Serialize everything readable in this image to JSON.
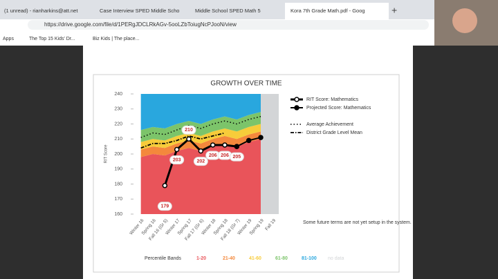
{
  "browser": {
    "tabs": [
      "(1 unread) - rianharkins@att.net",
      "Case Interview SPED Middle Scho",
      "Middle School SPED Math 5",
      "Kora 7th Grade Math.pdf - Goog"
    ],
    "url": "https://drive.google.com/file/d/1PERgJDCLRkAGv-5ooLZbToiugNcPJooN/view",
    "bookmarks": [
      "Apps",
      "The Top 15 Kids' Dr...",
      "Biz Kids | The place..."
    ]
  },
  "chart_data": {
    "type": "line",
    "title": "GROWTH OVER TIME",
    "ylabel": "RIT Score",
    "categories": [
      "Winter 16",
      "Spring 16",
      "Fall 16 (Gr 5)",
      "Winter 17",
      "Spring 17",
      "Fall 17 (Gr 6)",
      "Winter 18",
      "Spring 18",
      "Fall 18 (Gr 7)",
      "Winter 19",
      "Spring 19",
      "Fall 19"
    ],
    "ylim": [
      160,
      240
    ],
    "yticks": [
      160,
      170,
      180,
      190,
      200,
      210,
      220,
      230,
      240
    ],
    "series": [
      {
        "name": "RIT Score: Mathematics",
        "color": "#000000",
        "values": [
          null,
          null,
          179,
          203,
          210,
          202,
          206,
          206,
          205,
          null,
          null,
          null
        ]
      },
      {
        "name": "Projected Score: Mathematics",
        "color": "#000000",
        "values": [
          null,
          null,
          null,
          null,
          null,
          null,
          null,
          null,
          205,
          209,
          211,
          null
        ]
      },
      {
        "name": "Average Achievement",
        "color": "#000000",
        "values": [
          211,
          214,
          213,
          216,
          219,
          217,
          220,
          222,
          220,
          223,
          225,
          null
        ]
      },
      {
        "name": "District Grade Level Mean",
        "color": "#000000",
        "values": [
          204,
          207,
          207,
          209,
          212,
          210,
          212,
          214,
          null,
          null,
          null,
          null
        ]
      }
    ],
    "bands_title": "Percentile Bands",
    "bands": [
      {
        "name": "1-20",
        "color": "#e9545a",
        "values": [
          38,
          40,
          39,
          42,
          44,
          42,
          45,
          47,
          45,
          48,
          50,
          null
        ]
      },
      {
        "name": "21-40",
        "color": "#f4883c",
        "values": [
          5,
          5,
          5,
          5,
          5,
          5,
          5,
          5,
          5,
          5,
          5,
          null
        ]
      },
      {
        "name": "41-60",
        "color": "#f7cc3a",
        "values": [
          5,
          5,
          5,
          5,
          5,
          5,
          5,
          5,
          5,
          5,
          5,
          null
        ]
      },
      {
        "name": "61-80",
        "color": "#7cc46a",
        "values": [
          8,
          8,
          8,
          8,
          8,
          8,
          8,
          8,
          8,
          8,
          8,
          null
        ]
      },
      {
        "name": "81-100",
        "color": "#29a7de",
        "values": [
          24,
          22,
          23,
          20,
          18,
          20,
          17,
          15,
          17,
          14,
          12,
          null
        ]
      },
      {
        "name": "no data",
        "color": "#d3d5d7",
        "values": null
      }
    ],
    "note": "Some future terms are not yet setup in the system."
  }
}
